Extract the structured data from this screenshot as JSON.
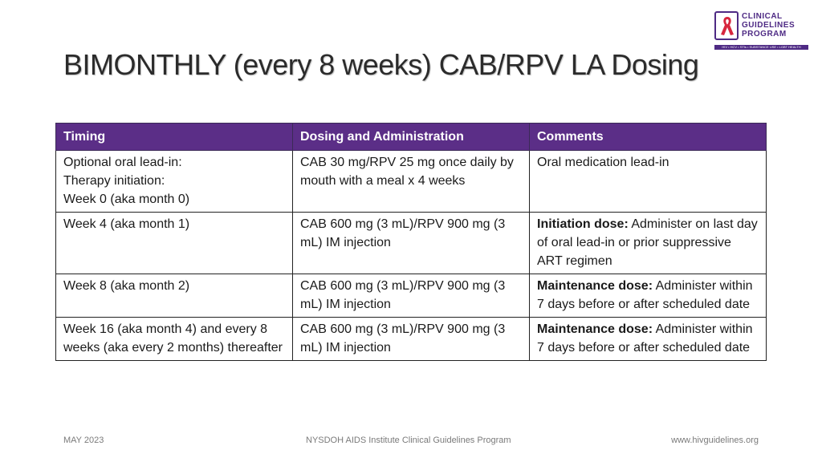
{
  "slide": {
    "title": "BIMONTHLY (every 8 weeks) CAB/RPV LA Dosing"
  },
  "logo": {
    "line1": "CLINICAL",
    "line2": "GUIDELINES",
    "line3": "PROGRAM",
    "tagline": "HIV • HCV • STIs • SUBSTANCE USE • LGBT HEALTH",
    "accent": "#4e2a84",
    "ribbon_color": "#d7263d"
  },
  "table": {
    "header_color": "#5b2e87",
    "headers": [
      "Timing",
      "Dosing and Administration",
      "Comments"
    ],
    "rows": [
      {
        "timing": [
          "Optional oral lead-in:",
          "Therapy initiation:",
          "Week 0 (aka month 0)"
        ],
        "dosing": "CAB 30 mg/RPV 25 mg once daily by mouth with a meal x 4 weeks",
        "comment_bold": "",
        "comment": "Oral medication lead-in"
      },
      {
        "timing": [
          "Week 4 (aka month 1)"
        ],
        "dosing": "CAB 600 mg (3 mL)/RPV 900 mg (3 mL) IM injection",
        "comment_bold": "Initiation dose:",
        "comment": " Administer on last day of oral lead-in or prior suppressive ART regimen"
      },
      {
        "timing": [
          "Week 8 (aka month 2)"
        ],
        "dosing": "CAB 600 mg (3 mL)/RPV 900 mg (3 mL) IM injection",
        "comment_bold": "Maintenance dose:",
        "comment": " Administer within 7 days before or after scheduled date"
      },
      {
        "timing": [
          "Week 16 (aka month 4) and every 8 weeks (aka every 2 months) thereafter"
        ],
        "dosing": "CAB 600 mg (3 mL)/RPV 900 mg (3 mL) IM injection",
        "comment_bold": "Maintenance dose:",
        "comment": " Administer within 7 days before or after scheduled date"
      }
    ]
  },
  "footer": {
    "date": "MAY 2023",
    "center": "NYSDOH AIDS Institute Clinical Guidelines Program",
    "url": "www.hivguidelines.org"
  }
}
